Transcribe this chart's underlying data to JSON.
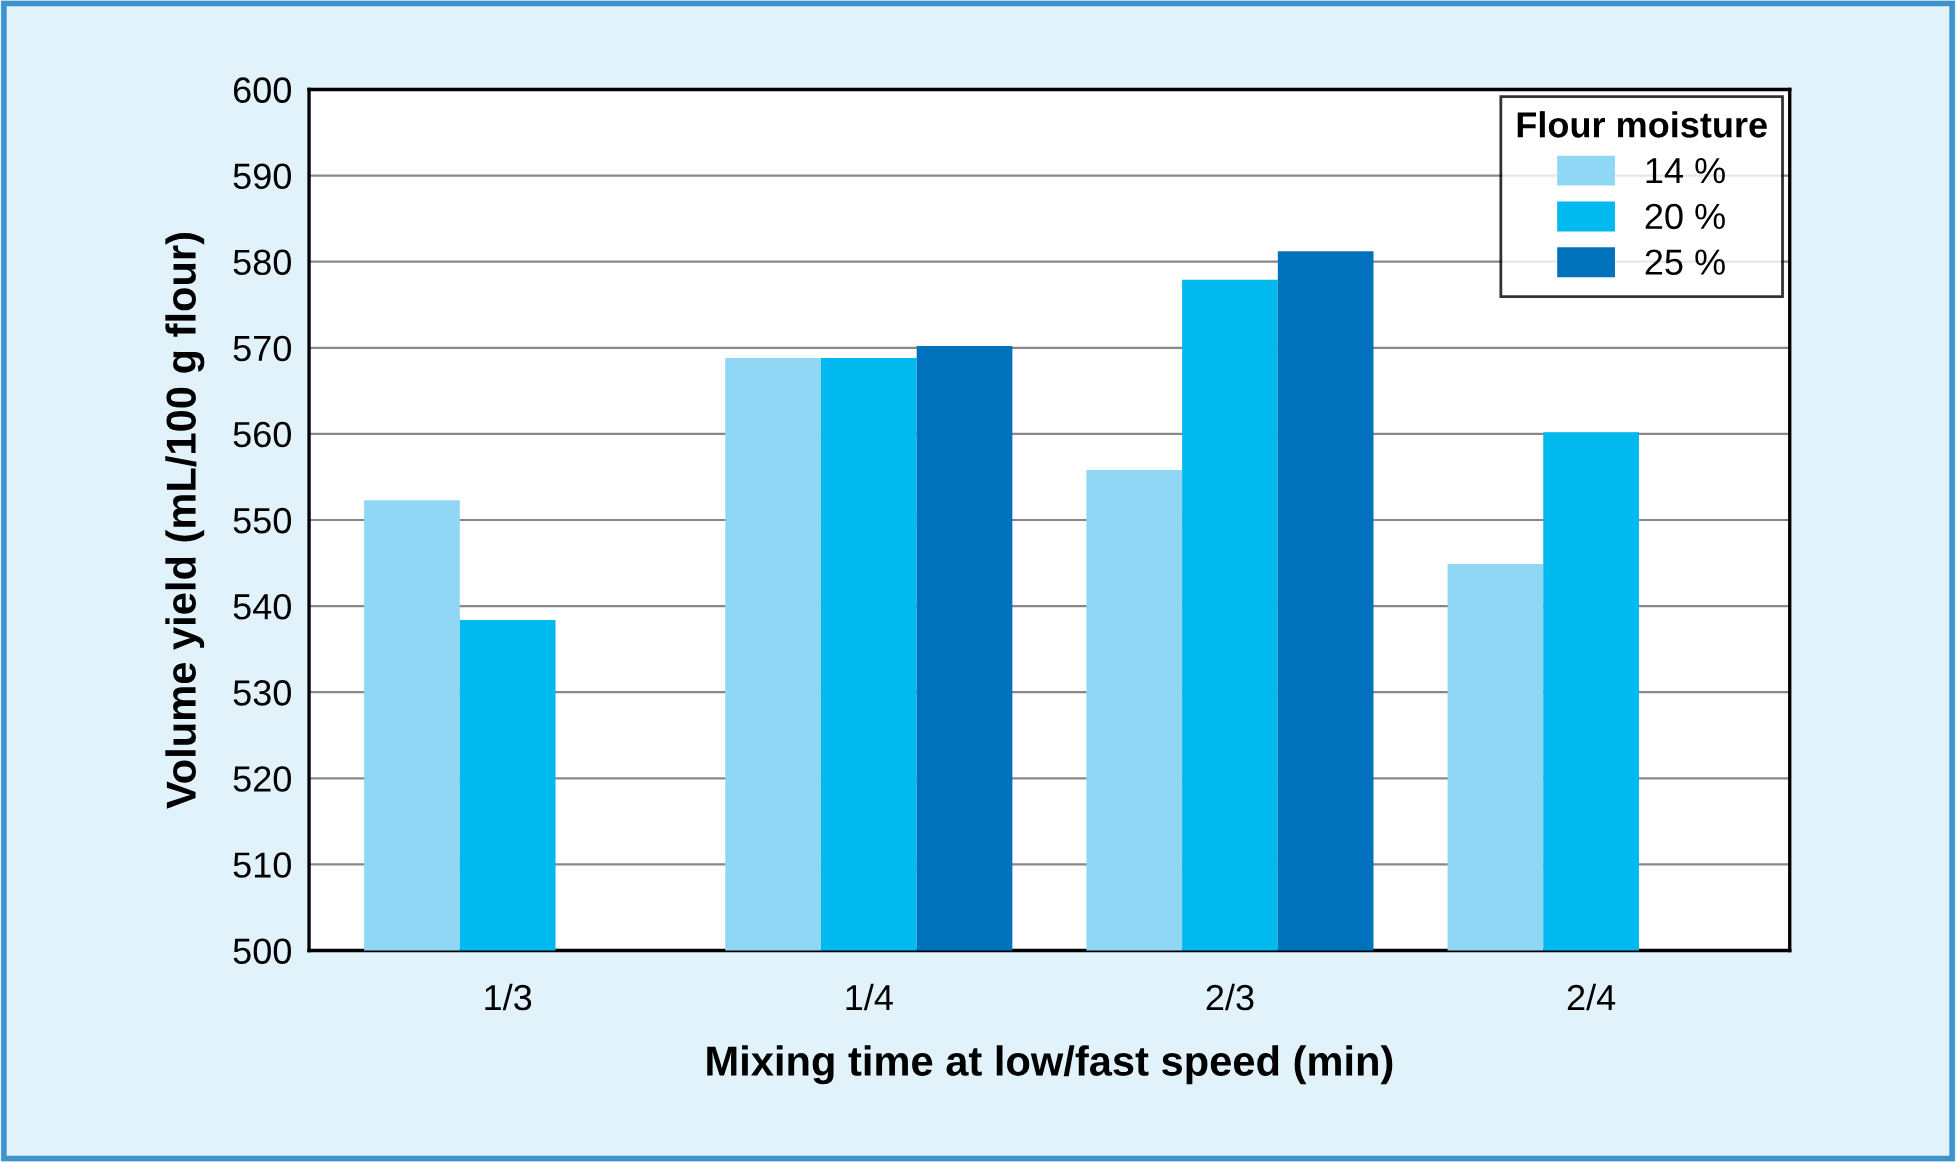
{
  "chart_data": {
    "type": "bar",
    "xlabel": "Mixing time at low/fast speed (min)",
    "ylabel": "Volume yield (mL/100 g flour)",
    "legend_title": "Flour moisture",
    "categories": [
      "1/3",
      "1/4",
      "2/3",
      "2/4"
    ],
    "series": [
      {
        "name": "14 %",
        "color": "#8fd7f4",
        "values": [
          552.3,
          568.8,
          555.8,
          544.9
        ]
      },
      {
        "name": "20 %",
        "color": "#00b9ef",
        "values": [
          538.4,
          568.8,
          577.9,
          560.2
        ]
      },
      {
        "name": "25 %",
        "color": "#0072bb",
        "values": [
          null,
          570.2,
          581.2,
          null
        ]
      }
    ],
    "ylim": [
      500,
      600
    ],
    "yticks": [
      500,
      510,
      520,
      530,
      540,
      550,
      560,
      570,
      580,
      590,
      600
    ],
    "grid": "y",
    "legend": "top right"
  }
}
